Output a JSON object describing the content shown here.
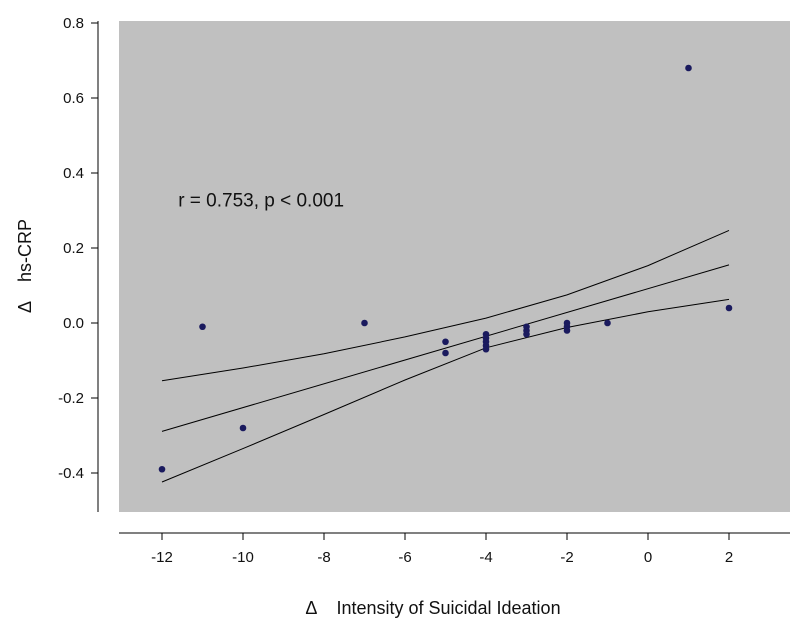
{
  "chart_data": {
    "type": "scatter",
    "title": "",
    "xlabel": "Δ    Intensity of Suicidal Ideation",
    "ylabel": "Δ    hs-CRP",
    "xlim": [
      -13.1,
      3.1
    ],
    "ylim": [
      -0.5,
      0.8
    ],
    "xticks": [
      -12,
      -10,
      -8,
      -6,
      -4,
      -2,
      0,
      2
    ],
    "yticks": [
      -0.4,
      -0.2,
      0.0,
      0.2,
      0.4,
      0.6,
      0.8
    ],
    "xtick_labels": [
      "-12",
      "-10",
      "-8",
      "-6",
      "-4",
      "-2",
      "0",
      "2"
    ],
    "ytick_labels": [
      "-0.4",
      "-0.2",
      "0.0",
      "0.2",
      "0.4",
      "0.6",
      "0.8"
    ],
    "grid": false,
    "background_color": "#c0c0c0",
    "point_color": "#1a1a5e",
    "line_color": "#000000",
    "annotation": {
      "text": "r = 0.753, p < 0.001",
      "x": -11.6,
      "y": 0.33
    },
    "points": [
      {
        "x": -12,
        "y": -0.39
      },
      {
        "x": -11,
        "y": -0.01
      },
      {
        "x": -10,
        "y": -0.28
      },
      {
        "x": -7,
        "y": 0.0
      },
      {
        "x": -5,
        "y": -0.05
      },
      {
        "x": -5,
        "y": -0.08
      },
      {
        "x": -4,
        "y": -0.03
      },
      {
        "x": -4,
        "y": -0.04
      },
      {
        "x": -4,
        "y": -0.05
      },
      {
        "x": -4,
        "y": -0.06
      },
      {
        "x": -4,
        "y": -0.07
      },
      {
        "x": -3,
        "y": -0.01
      },
      {
        "x": -3,
        "y": -0.02
      },
      {
        "x": -3,
        "y": -0.03
      },
      {
        "x": -2,
        "y": 0.0
      },
      {
        "x": -2,
        "y": -0.01
      },
      {
        "x": -2,
        "y": -0.02
      },
      {
        "x": -1,
        "y": 0.0
      },
      {
        "x": 1,
        "y": 0.68
      },
      {
        "x": 2,
        "y": 0.04
      }
    ],
    "regression": {
      "x": [
        -12,
        2
      ],
      "y": [
        -0.289,
        0.155
      ]
    },
    "ci_upper": {
      "x": [
        -12,
        -10,
        -8,
        -6,
        -4,
        -2,
        0,
        2
      ],
      "y": [
        -0.154,
        -0.12,
        -0.082,
        -0.037,
        0.013,
        0.075,
        0.153,
        0.247
      ]
    },
    "ci_lower": {
      "x": [
        -12,
        -10,
        -8,
        -6,
        -4,
        -2,
        0,
        2
      ],
      "y": [
        -0.424,
        -0.335,
        -0.244,
        -0.152,
        -0.066,
        -0.012,
        0.03,
        0.063
      ]
    }
  }
}
